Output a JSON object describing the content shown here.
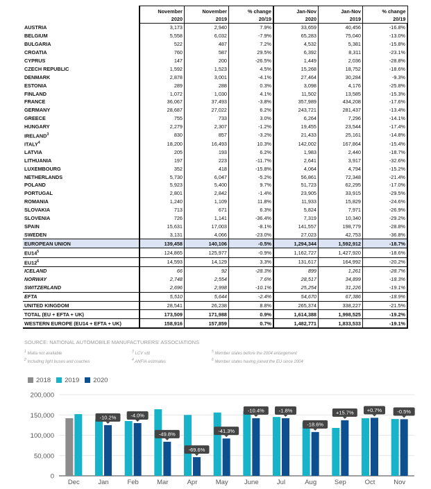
{
  "table": {
    "headers": [
      [
        "November",
        "2020"
      ],
      [
        "November",
        "2019"
      ],
      [
        "% change",
        "20/19"
      ],
      [
        "Jan-Nov",
        "2020"
      ],
      [
        "Jan-Nov",
        "2019"
      ],
      [
        "% change",
        "20/19"
      ]
    ],
    "rows": [
      {
        "label": "AUSTRIA",
        "sup": "",
        "values": [
          "3,173",
          "2,940",
          "7.9%",
          "33,659",
          "40,456",
          "-16.8%"
        ]
      },
      {
        "label": "BELGIUM",
        "sup": "",
        "values": [
          "5,558",
          "6,032",
          "-7.9%",
          "65,283",
          "75,040",
          "-13.0%"
        ]
      },
      {
        "label": "BULGARIA",
        "sup": "",
        "values": [
          "522",
          "487",
          "7.2%",
          "4,532",
          "5,381",
          "-15.8%"
        ]
      },
      {
        "label": "CROATIA",
        "sup": "",
        "values": [
          "760",
          "587",
          "29.5%",
          "6,392",
          "8,311",
          "-23.1%"
        ]
      },
      {
        "label": "CYPRUS",
        "sup": "",
        "values": [
          "147",
          "200",
          "-26.5%",
          "1,449",
          "2,036",
          "-28.8%"
        ]
      },
      {
        "label": "CZECH REPUBLIC",
        "sup": "",
        "values": [
          "1,592",
          "1,523",
          "4.5%",
          "15,268",
          "18,752",
          "-18.6%"
        ]
      },
      {
        "label": "DENMARK",
        "sup": "",
        "values": [
          "2,878",
          "3,001",
          "-4.1%",
          "27,464",
          "30,284",
          "-9.3%"
        ]
      },
      {
        "label": "ESTONIA",
        "sup": "",
        "values": [
          "289",
          "288",
          "0.3%",
          "3,098",
          "4,176",
          "-25.8%"
        ]
      },
      {
        "label": "FINLAND",
        "sup": "",
        "values": [
          "1,072",
          "1,030",
          "4.1%",
          "11,502",
          "13,585",
          "-15.3%"
        ]
      },
      {
        "label": "FRANCE",
        "sup": "",
        "values": [
          "36,067",
          "37,493",
          "-3.8%",
          "357,989",
          "434,208",
          "-17.6%"
        ]
      },
      {
        "label": "GERMANY",
        "sup": "",
        "values": [
          "28,687",
          "27,022",
          "6.2%",
          "243,721",
          "281,437",
          "-13.4%"
        ]
      },
      {
        "label": "GREECE",
        "sup": "",
        "values": [
          "755",
          "733",
          "3.0%",
          "6,264",
          "7,296",
          "-14.1%"
        ]
      },
      {
        "label": "HUNGARY",
        "sup": "",
        "values": [
          "2,279",
          "2,307",
          "-1.2%",
          "19,455",
          "23,544",
          "-17.4%"
        ]
      },
      {
        "label": "IRELAND",
        "sup": "3",
        "values": [
          "830",
          "857",
          "-3.2%",
          "21,433",
          "25,161",
          "-14.8%"
        ]
      },
      {
        "label": "ITALY",
        "sup": "4",
        "values": [
          "18,200",
          "16,493",
          "10.3%",
          "142,002",
          "167,864",
          "-15.4%"
        ]
      },
      {
        "label": "LATVIA",
        "sup": "",
        "values": [
          "205",
          "193",
          "6.2%",
          "1,983",
          "2,440",
          "-18.7%"
        ]
      },
      {
        "label": "LITHUANIA",
        "sup": "",
        "values": [
          "197",
          "223",
          "-11.7%",
          "2,641",
          "3,917",
          "-32.6%"
        ]
      },
      {
        "label": "LUXEMBOURG",
        "sup": "",
        "values": [
          "352",
          "418",
          "-15.8%",
          "4,064",
          "4,794",
          "-15.2%"
        ]
      },
      {
        "label": "NETHERLANDS",
        "sup": "",
        "values": [
          "5,730",
          "6,047",
          "-5.2%",
          "56,861",
          "72,348",
          "-21.4%"
        ]
      },
      {
        "label": "POLAND",
        "sup": "",
        "values": [
          "5,923",
          "5,400",
          "9.7%",
          "51,723",
          "62,295",
          "-17.0%"
        ]
      },
      {
        "label": "PORTUGAL",
        "sup": "",
        "values": [
          "2,801",
          "2,842",
          "-1.4%",
          "23,905",
          "33,915",
          "-29.5%"
        ]
      },
      {
        "label": "ROMANIA",
        "sup": "",
        "values": [
          "1,240",
          "1,109",
          "11.8%",
          "11,933",
          "15,829",
          "-24.6%"
        ]
      },
      {
        "label": "SLOVAKIA",
        "sup": "",
        "values": [
          "713",
          "671",
          "6.3%",
          "5,824",
          "7,971",
          "-26.9%"
        ]
      },
      {
        "label": "SLOVENIA",
        "sup": "",
        "values": [
          "726",
          "1,141",
          "-36.4%",
          "7,319",
          "10,340",
          "-29.2%"
        ]
      },
      {
        "label": "SPAIN",
        "sup": "",
        "values": [
          "15,631",
          "17,003",
          "-8.1%",
          "141,557",
          "198,779",
          "-28.8%"
        ]
      },
      {
        "label": "SWEDEN",
        "sup": "",
        "values": [
          "3,131",
          "4,066",
          "-23.0%",
          "27,023",
          "42,753",
          "-36.8%"
        ]
      },
      {
        "label": "EUROPEAN UNION",
        "sup": "",
        "cls": "eu",
        "values": [
          "139,458",
          "140,106",
          "-0.5%",
          "1,294,344",
          "1,592,912",
          "-18.7%"
        ]
      },
      {
        "label": "EU14",
        "sup": "5",
        "cls": "sep",
        "values": [
          "124,865",
          "125,977",
          "-0.9%",
          "1,162,727",
          "1,427,920",
          "-18.6%"
        ]
      },
      {
        "label": "EU12",
        "sup": "6",
        "cls": "sep",
        "values": [
          "14,593",
          "14,129",
          "3.3%",
          "131,617",
          "164,992",
          "-20.2%"
        ]
      },
      {
        "label": "ICELAND",
        "sup": "",
        "cls": "sep ital",
        "values": [
          "66",
          "92",
          "-28.3%",
          "899",
          "1,261",
          "-28.7%"
        ]
      },
      {
        "label": "NORWAY",
        "sup": "",
        "cls": "ital",
        "values": [
          "2,748",
          "2,554",
          "7.6%",
          "28,517",
          "34,899",
          "-18.3%"
        ]
      },
      {
        "label": "SWITZERLAND",
        "sup": "",
        "cls": "ital",
        "values": [
          "2,696",
          "2,998",
          "-10.1%",
          "25,254",
          "31,226",
          "-19.1%"
        ]
      },
      {
        "label": "EFTA",
        "sup": "",
        "cls": "sep ital",
        "values": [
          "5,510",
          "5,644",
          "-2.4%",
          "54,670",
          "67,386",
          "-18.9%"
        ]
      },
      {
        "label": "UNITED KINGDOM",
        "sup": "",
        "cls": "sep",
        "values": [
          "28,541",
          "26,238",
          "8.8%",
          "265,374",
          "338,227",
          "-21.5%"
        ]
      },
      {
        "label": "TOTAL (EU + EFTA + UK)",
        "sup": "",
        "cls": "sep bold",
        "values": [
          "173,509",
          "171,988",
          "0.9%",
          "1,614,388",
          "1,998,525",
          "-19.2%"
        ]
      },
      {
        "label": "WESTERN EUROPE (EU14 + EFTA + UK)",
        "sup": "",
        "cls": "sep bold last",
        "values": [
          "158,916",
          "157,859",
          "0.7%",
          "1,482,771",
          "1,833,533",
          "-19.1%"
        ]
      }
    ],
    "source_prefix": "SOURCE: ",
    "source": "NATIONAL AUTOMOBILE MANUFACTURERS' ASSOCIATIONS",
    "footnotes": [
      "Malta not available",
      "Including light buses and coaches",
      "LCV ≤6t",
      "ANFIA estimates",
      "Member states before the 2004 enlargement",
      "Member states having joined the EU since 2004"
    ]
  },
  "chart_data": {
    "type": "bar",
    "categories": [
      "Dec",
      "Jan",
      "Feb",
      "Mar",
      "Apr",
      "May",
      "June",
      "Jul",
      "Aug",
      "Sep",
      "Oct",
      "Nov"
    ],
    "series": [
      {
        "name": "2018",
        "color": "#8c8c8c",
        "values": [
          142000,
          null,
          null,
          null,
          null,
          null,
          null,
          null,
          null,
          null,
          null,
          null
        ]
      },
      {
        "name": "2019",
        "color": "#17b3c9",
        "values": [
          152000,
          138000,
          135000,
          164000,
          150000,
          156000,
          159000,
          145000,
          132000,
          118000,
          142000,
          140000
        ]
      },
      {
        "name": "2020",
        "color": "#0d4f8f",
        "values": [
          null,
          125000,
          130000,
          84000,
          46000,
          92000,
          142000,
          142000,
          108000,
          137000,
          143000,
          139458
        ]
      }
    ],
    "annotations": [
      "",
      "-10.2%",
      "-4.0%",
      "-49.8%",
      "-69.6%",
      "-41.3%",
      "-10.4%",
      "-1.8%",
      "-18.6%",
      "+15.7%",
      "+0.7%",
      "-0.5%"
    ],
    "yticks": [
      0,
      50000,
      100000,
      150000,
      200000
    ],
    "ytick_labels": [
      "0",
      "50,000",
      "100,000",
      "150,000",
      "200,000"
    ],
    "ylim": [
      0,
      200000
    ],
    "grid": true,
    "legend": "top-left"
  }
}
